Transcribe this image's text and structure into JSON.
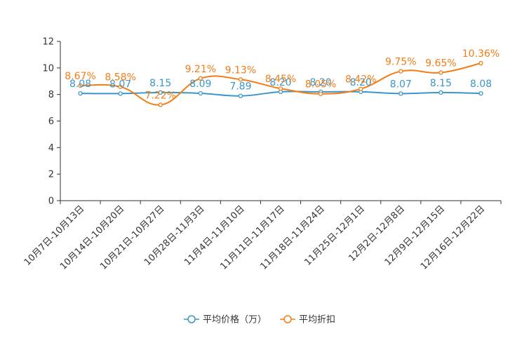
{
  "chart_data": {
    "type": "line",
    "title": "",
    "xlabel": "",
    "ylabel": "",
    "ylim": [
      0,
      12
    ],
    "yticks": [
      0,
      2,
      4,
      6,
      8,
      10,
      12
    ],
    "categories": [
      "10月7日-10月13日",
      "10月14日-10月20日",
      "10月21日-10月27日",
      "10月28日-11月3日",
      "11月4日-11月10日",
      "11月11日-11月17日",
      "11月18日-11月24日",
      "11月25日-12月1日",
      "12月2日-12月8日",
      "12月9日-12月15日",
      "12月16日-12月22日"
    ],
    "series": [
      {
        "name": "平均价格（万）",
        "color": "#3a97c9",
        "values": [
          8.08,
          8.07,
          8.15,
          8.09,
          7.89,
          8.2,
          8.2,
          8.2,
          8.07,
          8.15,
          8.08
        ],
        "labels": [
          "8.08",
          "8.07",
          "8.15",
          "8.09",
          "7.89",
          "8.20",
          "8.20",
          "8.20",
          "8.07",
          "8.15",
          "8.08"
        ]
      },
      {
        "name": "平均折扣",
        "color": "#f57c14",
        "values": [
          8.67,
          8.58,
          7.22,
          9.21,
          9.13,
          8.45,
          8.05,
          8.42,
          9.75,
          9.65,
          10.36
        ],
        "labels": [
          "8.67%",
          "8.58%",
          "7.22%",
          "9.21%",
          "9.13%",
          "8.45%",
          "8.05%",
          "8.42%",
          "9.75%",
          "9.65%",
          "10.36%"
        ]
      }
    ],
    "legend_position": "bottom-center",
    "grid": false
  }
}
